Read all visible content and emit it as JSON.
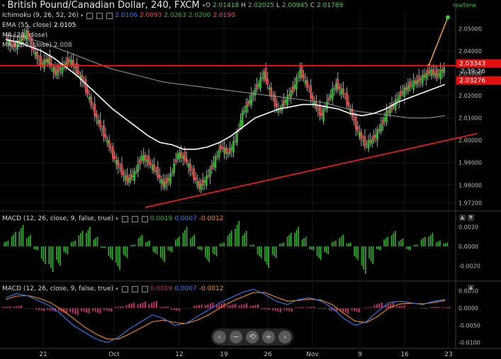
{
  "header": {
    "title": "British Pound/Canadian Dollar, 240, FXCM",
    "ohlc": {
      "o_label": "O",
      "o": "2.01418",
      "h_label": "H",
      "h": "2.02025",
      "l_label": "L",
      "l": "2.00945",
      "c_label": "C",
      "c": "2.01789"
    },
    "realtime_label": "realtime"
  },
  "indicators": {
    "ichimoku": {
      "label": "Ichimoku (9, 26, 52, 26)",
      "v1": "2.0106",
      "v2": "2.0093",
      "v3": "2.0263",
      "v4": "2.0200",
      "v5": "2.0190"
    },
    "ema": {
      "label": "EMA (55, close)",
      "value": "2.0105"
    },
    "ma1": {
      "label": "MA (20, close)"
    },
    "ma2": {
      "label": "MA (200, close)",
      "value": "2.008"
    }
  },
  "macd1": {
    "label": "MACD (12, 26, close, 9, false, true)",
    "v1": "0.0019",
    "v2": "0.0007",
    "v3": "-0.0012"
  },
  "macd2": {
    "label": "MACD (12, 26, close, 9, false, true)",
    "v1": "0.0019",
    "v2": "0.0007",
    "v3": "-0.0012"
  },
  "price_tags": {
    "resistance": "2.03343",
    "countdown": "2:39:26",
    "current": "2.03276"
  },
  "colors": {
    "up": "#2db82d",
    "down": "#e84b4b",
    "resistance": "#ff1a1a",
    "trend": "#ff1a1a",
    "ma_fast": "#ffffff",
    "ma_slow": "#9a9a9a",
    "arrow": "#f0a020",
    "macd_line": "#2a7fff",
    "signal_line": "#ff8c00",
    "hist_pos": "#2db82d",
    "hist_neg": "#ff1a1a",
    "hist2": "#c0306a"
  },
  "chart_data": [
    {
      "type": "candlestick",
      "title": "British Pound/Canadian Dollar, 240, FXCM",
      "x_ticks": [
        "21",
        "Oct",
        "12",
        "19",
        "26",
        "Nov",
        "9",
        "16",
        "23"
      ],
      "y_ticks": [
        "2.05000",
        "2.04000",
        "2.03000",
        "2.02000",
        "2.01000",
        "2.00000",
        "1.99000",
        "1.98000",
        "1.97200"
      ],
      "ylim": [
        1.969,
        2.058
      ],
      "resistance_level": 2.0334,
      "trendline": {
        "from": {
          "x": "12",
          "y": 1.97
        },
        "to": {
          "x": "23",
          "y": 2.003
        }
      },
      "price_path": [
        2.046,
        2.042,
        2.044,
        2.048,
        2.04,
        2.034,
        2.036,
        2.03,
        2.033,
        2.036,
        2.031,
        2.025,
        2.016,
        2.008,
        2.001,
        1.993,
        1.987,
        1.982,
        1.985,
        1.993,
        1.99,
        1.986,
        1.98,
        1.984,
        1.994,
        1.992,
        1.985,
        1.979,
        1.983,
        1.99,
        1.997,
        1.994,
        2.0,
        2.012,
        2.018,
        2.024,
        2.03,
        2.02,
        2.013,
        2.018,
        2.023,
        2.031,
        2.024,
        2.016,
        2.011,
        2.019,
        2.025,
        2.021,
        2.013,
        2.004,
        1.998,
        2.0,
        2.005,
        2.012,
        2.016,
        2.021,
        2.024,
        2.026,
        2.028,
        2.031,
        2.029,
        2.032
      ],
      "ma_fast": [
        2.045,
        2.044,
        2.042,
        2.04,
        2.037,
        2.033,
        2.029,
        2.024,
        2.019,
        2.014,
        2.01,
        2.006,
        2.002,
        1.999,
        1.998,
        1.996,
        1.996,
        1.997,
        1.999,
        2.002,
        2.006,
        2.01,
        2.012,
        2.014,
        2.015,
        2.016,
        2.016,
        2.015,
        2.014,
        2.012,
        2.011,
        2.012,
        2.014,
        2.017,
        2.019,
        2.021,
        2.023,
        2.025
      ],
      "ma_slow": [
        2.047,
        2.046,
        2.044,
        2.041,
        2.038,
        2.035,
        2.032,
        2.03,
        2.028,
        2.026,
        2.025,
        2.024,
        2.023,
        2.022,
        2.021,
        2.02,
        2.019,
        2.018,
        2.017,
        2.015,
        2.013,
        2.012,
        2.011,
        2.01,
        2.01,
        2.011
      ],
      "projection_arrow": {
        "from": {
          "x": "19",
          "y": 2.0334
        },
        "to": {
          "x": "23",
          "y": 2.055
        }
      }
    },
    {
      "type": "bar",
      "title": "MACD (12, 26, close, 9, false, true)",
      "y_ticks": [
        "0.0020",
        "0.0000",
        "-0.0020"
      ],
      "ylim": [
        -0.0034,
        0.0034
      ],
      "histogram": [
        0.0006,
        0.0015,
        0.0022,
        0.0012,
        -0.0004,
        -0.0018,
        -0.0026,
        -0.002,
        -0.0008,
        0.0006,
        0.0016,
        0.002,
        0.001,
        -0.0002,
        -0.0014,
        -0.0024,
        -0.0012,
        0.0002,
        0.0012,
        0.0006,
        -0.0008,
        -0.0016,
        -0.0006,
        0.001,
        0.002,
        0.0012,
        -0.0004,
        -0.0016,
        -0.001,
        0.0004,
        0.0016,
        0.0026,
        0.0016,
        0.0002,
        -0.0012,
        -0.0022,
        -0.0012,
        0.0004,
        0.0014,
        0.002,
        0.001,
        -0.0004,
        -0.0014,
        -0.0008,
        0.0006,
        0.0012,
        0.0004,
        -0.0014,
        -0.0028,
        -0.0018,
        -0.0004,
        0.001,
        0.0016,
        0.0008,
        -0.0004,
        0.0002,
        0.001,
        0.0014,
        0.0006,
        0.0004
      ]
    },
    {
      "type": "line",
      "title": "MACD (12, 26, close, 9, false, true)",
      "y_ticks": [
        "0.0050",
        "0.0000",
        "-0.0050",
        "-0.0100"
      ],
      "ylim": [
        -0.0113,
        0.0072
      ],
      "macd": [
        0.003,
        0.0042,
        0.0035,
        0.002,
        0.0005,
        -0.002,
        -0.005,
        -0.007,
        -0.009,
        -0.01,
        -0.0085,
        -0.006,
        -0.004,
        -0.002,
        -0.003,
        -0.005,
        -0.0045,
        -0.0025,
        -0.0005,
        0.0015,
        0.003,
        0.0045,
        0.0055,
        0.004,
        0.002,
        0.001,
        0.0025,
        0.003,
        0.002,
        0.0,
        -0.003,
        -0.005,
        -0.004,
        -0.001,
        0.0015,
        0.002,
        0.0015,
        0.001,
        0.002,
        0.0025
      ],
      "signal": [
        0.0025,
        0.0035,
        0.0036,
        0.0028,
        0.0015,
        -0.0005,
        -0.003,
        -0.0055,
        -0.0075,
        -0.009,
        -0.009,
        -0.0075,
        -0.0058,
        -0.004,
        -0.0035,
        -0.0042,
        -0.0045,
        -0.0035,
        -0.002,
        0.0,
        0.0018,
        0.0032,
        0.0045,
        0.0045,
        0.0032,
        0.002,
        0.0022,
        0.0026,
        0.0023,
        0.001,
        -0.0015,
        -0.0038,
        -0.0042,
        -0.0025,
        0.0,
        0.0012,
        0.0014,
        0.0012,
        0.0016,
        0.0022
      ],
      "histogram": [
        0.0005,
        0.0007,
        -0.0001,
        -0.0008,
        -0.001,
        -0.0015,
        -0.002,
        -0.0015,
        -0.0015,
        -0.001,
        0.0005,
        0.0015,
        0.0018,
        0.002,
        0.0005,
        -0.0008,
        0.0,
        0.001,
        0.0015,
        0.0015,
        0.0012,
        0.0013,
        0.001,
        -0.0005,
        -0.0012,
        -0.001,
        0.0003,
        0.0004,
        -0.0003,
        -0.001,
        -0.0015,
        -0.0012,
        0.0002,
        0.0015,
        0.0015,
        0.0008,
        0.0001,
        -0.0002,
        0.0004,
        0.0003
      ]
    }
  ]
}
